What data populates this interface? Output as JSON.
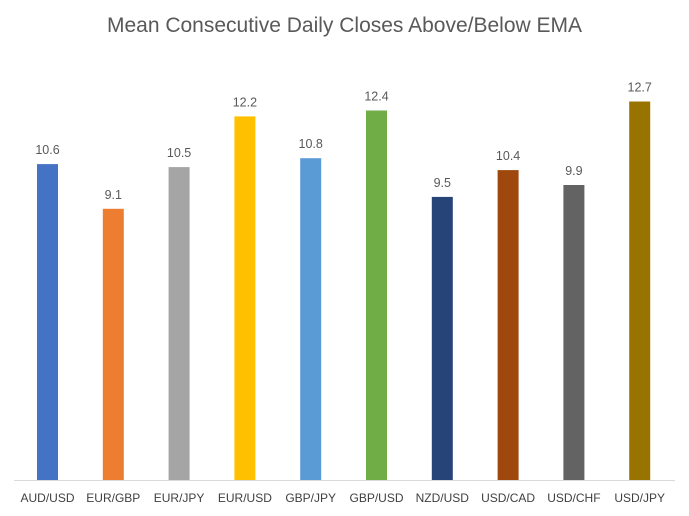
{
  "chart_data": {
    "type": "bar",
    "title": "Mean Consecutive Daily Closes Above/Below EMA",
    "xlabel": "",
    "ylabel": "",
    "ylim": [
      0,
      14
    ],
    "grid": false,
    "legend": "none",
    "categories": [
      "AUD/USD",
      "EUR/GBP",
      "EUR/JPY",
      "EUR/USD",
      "GBP/JPY",
      "GBP/USD",
      "NZD/USD",
      "USD/CAD",
      "USD/CHF",
      "USD/JPY"
    ],
    "values": [
      10.6,
      9.1,
      10.5,
      12.2,
      10.8,
      12.4,
      9.5,
      10.4,
      9.9,
      12.7
    ],
    "data_labels": [
      "10.6",
      "9.1",
      "10.5",
      "12.2",
      "10.8",
      "12.4",
      "9.5",
      "10.4",
      "9.9",
      "12.7"
    ],
    "colors": [
      "#4472C4",
      "#ED7D31",
      "#A5A5A5",
      "#FFC000",
      "#5B9BD5",
      "#70AD47",
      "#264478",
      "#9E480E",
      "#636363",
      "#997300"
    ]
  }
}
